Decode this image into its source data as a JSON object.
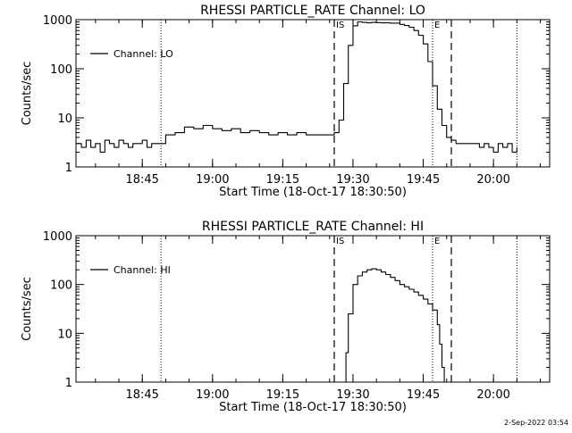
{
  "chart_data": [
    {
      "type": "line",
      "title": "RHESSI PARTICLE_RATE Channel: LO",
      "xlabel": "Start Time (18-Oct-17 18:30:50)",
      "ylabel": "Counts/sec",
      "yscale": "log",
      "ylim": [
        1,
        1000
      ],
      "xlim": [
        "18:30:50",
        "20:12:00"
      ],
      "y_ticks": [
        {
          "value": 1,
          "label": "1"
        },
        {
          "value": 10,
          "label": "10"
        },
        {
          "value": 100,
          "label": "100"
        },
        {
          "value": 1000,
          "label": "1000"
        }
      ],
      "x_ticks": [
        "18:45",
        "19:00",
        "19:15",
        "19:30",
        "19:45",
        "20:00"
      ],
      "legend": {
        "position": "top-left",
        "entries": [
          "Channel: LO"
        ]
      },
      "markers": [
        {
          "time": "19:26:00",
          "style": "dashed",
          "label": "IS"
        },
        {
          "time": "19:51:00",
          "style": "dashed",
          "label": ""
        },
        {
          "time": "18:49:00",
          "style": "dotted",
          "label": ""
        },
        {
          "time": "19:47:00",
          "style": "dotted",
          "label": "E"
        },
        {
          "time": "20:05:00",
          "style": "dotted",
          "label": ""
        }
      ],
      "series": [
        {
          "name": "Channel: LO",
          "x": [
            "18:31:00",
            "18:32:00",
            "18:33:00",
            "18:34:00",
            "18:35:00",
            "18:36:00",
            "18:37:00",
            "18:38:00",
            "18:39:00",
            "18:40:00",
            "18:41:00",
            "18:42:00",
            "18:43:00",
            "18:44:00",
            "18:45:00",
            "18:46:00",
            "18:47:00",
            "18:48:00",
            "18:49:00",
            "18:50:00",
            "18:51:00",
            "18:52:00",
            "18:53:00",
            "18:54:00",
            "18:56:00",
            "18:58:00",
            "19:00:00",
            "19:02:00",
            "19:04:00",
            "19:06:00",
            "19:08:00",
            "19:10:00",
            "19:12:00",
            "19:14:00",
            "19:16:00",
            "19:18:00",
            "19:20:00",
            "19:22:00",
            "19:24:00",
            "19:26:00",
            "19:27:00",
            "19:28:00",
            "19:29:00",
            "19:30:00",
            "19:31:00",
            "19:32:00",
            "19:33:00",
            "19:34:00",
            "19:35:00",
            "19:36:00",
            "19:38:00",
            "19:40:00",
            "19:41:00",
            "19:42:00",
            "19:43:00",
            "19:44:00",
            "19:45:00",
            "19:46:00",
            "19:47:00",
            "19:48:00",
            "19:49:00",
            "19:50:00",
            "19:51:00",
            "19:52:00",
            "19:53:00",
            "19:54:00",
            "19:55:00",
            "19:56:00",
            "19:57:00",
            "19:58:00",
            "19:59:00",
            "20:00:00",
            "20:01:00",
            "20:02:00",
            "20:03:00",
            "20:04:00",
            "20:05:00"
          ],
          "y": [
            3,
            2.5,
            3.5,
            2.5,
            3,
            2,
            3.5,
            3,
            2.5,
            3.5,
            3,
            2.5,
            3,
            3,
            3.5,
            2.5,
            3,
            3,
            3,
            4.5,
            4.5,
            5,
            5,
            6.5,
            6,
            7,
            6,
            5.5,
            6,
            5,
            5.5,
            5,
            4.5,
            5,
            4.5,
            5,
            4.5,
            4.5,
            4.5,
            5,
            9,
            50,
            300,
            750,
            900,
            880,
            860,
            880,
            870,
            860,
            850,
            800,
            760,
            700,
            600,
            480,
            320,
            140,
            45,
            15,
            7,
            4,
            3.5,
            3,
            3,
            3,
            3,
            3,
            2.5,
            3,
            2.5,
            2,
            3,
            2.5,
            3,
            2,
            2.5
          ]
        }
      ]
    },
    {
      "type": "line",
      "title": "RHESSI PARTICLE_RATE Channel: HI",
      "xlabel": "Start Time (18-Oct-17 18:30:50)",
      "ylabel": "Counts/sec",
      "yscale": "log",
      "ylim": [
        1,
        1000
      ],
      "xlim": [
        "18:30:50",
        "20:12:00"
      ],
      "y_ticks": [
        {
          "value": 1,
          "label": "1"
        },
        {
          "value": 10,
          "label": "10"
        },
        {
          "value": 100,
          "label": "100"
        },
        {
          "value": 1000,
          "label": "1000"
        }
      ],
      "x_ticks": [
        "18:45",
        "19:00",
        "19:15",
        "19:30",
        "19:45",
        "20:00"
      ],
      "legend": {
        "position": "top-left",
        "entries": [
          "Channel: HI"
        ]
      },
      "markers": [
        {
          "time": "19:26:00",
          "style": "dashed",
          "label": "IS"
        },
        {
          "time": "19:51:00",
          "style": "dashed",
          "label": ""
        },
        {
          "time": "18:49:00",
          "style": "dotted",
          "label": ""
        },
        {
          "time": "19:47:00",
          "style": "dotted",
          "label": "E"
        },
        {
          "time": "20:05:00",
          "style": "dotted",
          "label": ""
        }
      ],
      "series": [
        {
          "name": "Channel: HI",
          "x": [
            "19:28:00",
            "19:28:30",
            "19:29:00",
            "19:30:00",
            "19:31:00",
            "19:32:00",
            "19:33:00",
            "19:34:00",
            "19:35:00",
            "19:36:00",
            "19:37:00",
            "19:38:00",
            "19:39:00",
            "19:40:00",
            "19:41:00",
            "19:42:00",
            "19:43:00",
            "19:44:00",
            "19:45:00",
            "19:46:00",
            "19:47:00",
            "19:48:00",
            "19:48:30",
            "19:49:00",
            "19:49:30"
          ],
          "y": [
            1,
            4,
            25,
            100,
            150,
            180,
            200,
            210,
            200,
            180,
            160,
            140,
            120,
            100,
            90,
            80,
            70,
            60,
            50,
            40,
            30,
            15,
            6,
            2,
            1
          ]
        }
      ]
    }
  ],
  "footer": {
    "timestamp": "2-Sep-2022 03:54"
  }
}
